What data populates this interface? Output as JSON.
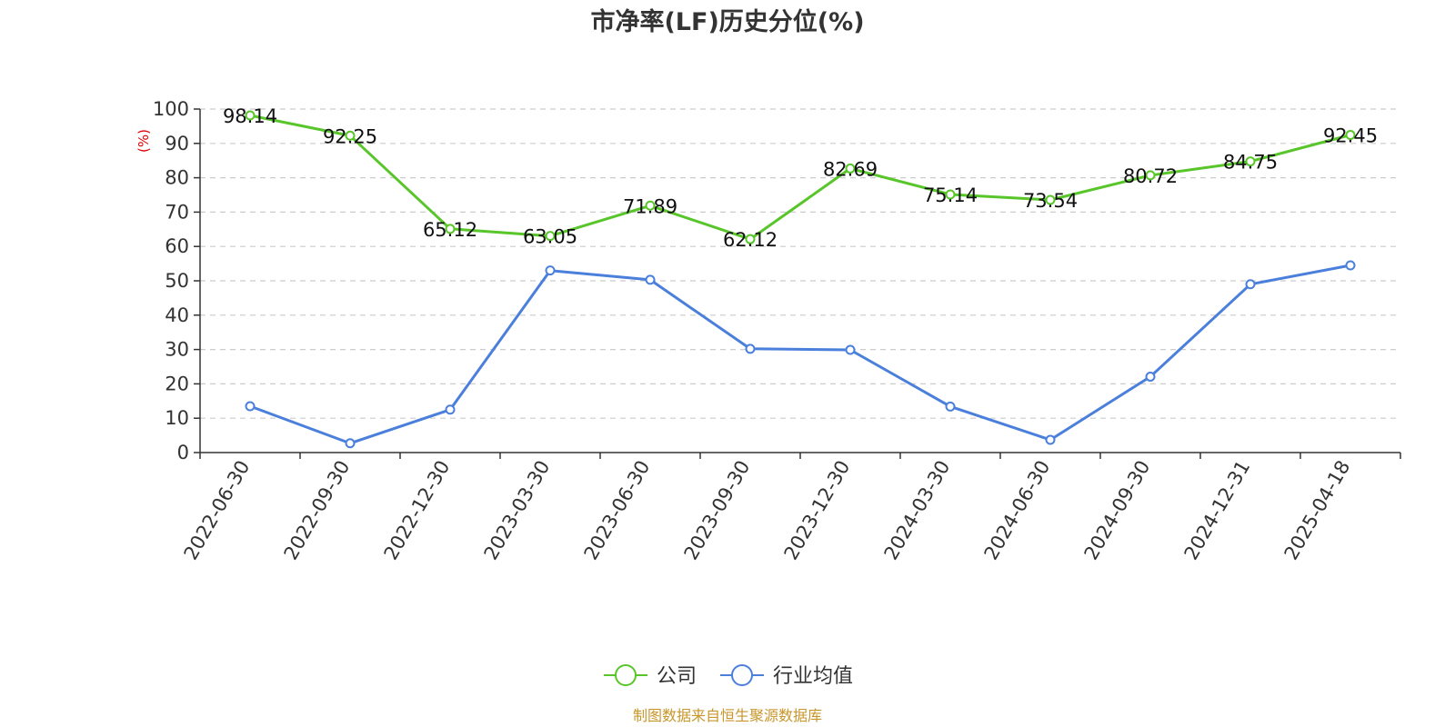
{
  "chart_data": {
    "type": "line",
    "title": "市净率(LF)历史分位(%)",
    "ylabel": "(%)",
    "xlabel": "",
    "ylim": [
      0,
      100
    ],
    "yticks": [
      0,
      10,
      20,
      30,
      40,
      50,
      60,
      70,
      80,
      90,
      100
    ],
    "grid": true,
    "legend_position": "bottom-center",
    "categories": [
      "2022-06-30",
      "2022-09-30",
      "2022-12-30",
      "2023-03-30",
      "2023-06-30",
      "2023-09-30",
      "2023-12-30",
      "2024-03-30",
      "2024-06-30",
      "2024-09-30",
      "2024-12-31",
      "2025-04-18"
    ],
    "series": [
      {
        "name": "公司",
        "color": "#58c62a",
        "show_labels": true,
        "values": [
          98.14,
          92.25,
          65.12,
          63.05,
          71.89,
          62.12,
          82.69,
          75.14,
          73.54,
          80.72,
          84.75,
          92.45
        ]
      },
      {
        "name": "行业均值",
        "color": "#4a7fdb",
        "show_labels": false,
        "values": [
          13.5,
          2.7,
          12.5,
          53.0,
          50.3,
          30.2,
          29.9,
          13.4,
          3.7,
          22.1,
          49.0,
          54.5
        ]
      }
    ],
    "footer": "制图数据来自恒生聚源数据库",
    "footer_color": "#c8962a"
  }
}
